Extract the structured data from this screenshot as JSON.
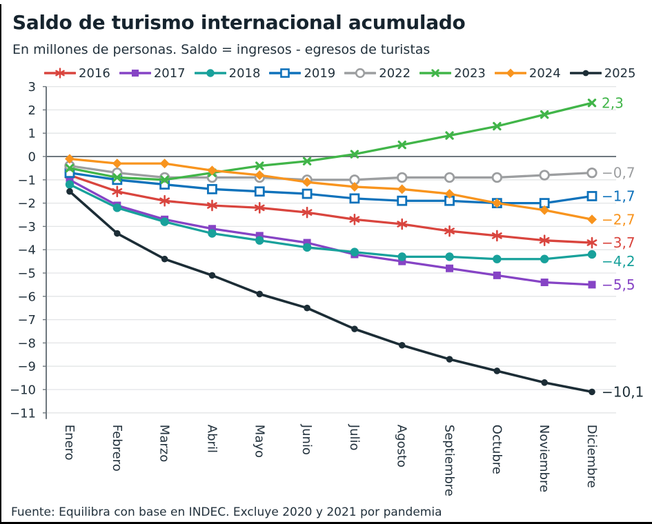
{
  "header": {
    "title": "Saldo de turismo internacional acumulado",
    "subtitle": "En millones de personas. Saldo = ingresos - egresos de turistas"
  },
  "footer": {
    "source": "Fuente: Equilibra con base en INDEC. Excluye 2020 y 2021 por pandemia"
  },
  "colors": {
    "background": "#ffffff",
    "text": "#22313c",
    "axis": "#6e777e",
    "zero_line": "#6e777e",
    "gridline": "#e2e4e6",
    "frame_border": "#000000"
  },
  "chart_data": {
    "type": "line",
    "title": "Saldo de turismo internacional acumulado",
    "subtitle": "En millones de personas. Saldo = ingresos - egresos de turistas",
    "xlabel": "",
    "ylabel": "",
    "grid": true,
    "legend_position": "top",
    "categories": [
      "Enero",
      "Febrero",
      "Marzo",
      "Abril",
      "Mayo",
      "Junio",
      "Julio",
      "Agosto",
      "Septiembre",
      "Octubre",
      "Noviembre",
      "Diciembre"
    ],
    "y_axis": {
      "min": -11,
      "max": 3,
      "step": 1,
      "tick_labels": [
        "3",
        "2",
        "1",
        "0",
        "−1",
        "−2",
        "−3",
        "−4",
        "−5",
        "−6",
        "−7",
        "−8",
        "−9",
        "−10",
        "−11"
      ]
    },
    "series": [
      {
        "name": "2016",
        "color": "#d9453e",
        "marker": "asterisk",
        "end_label": "−3,7",
        "values": [
          -0.8,
          -1.5,
          -1.9,
          -2.1,
          -2.2,
          -2.4,
          -2.7,
          -2.9,
          -3.2,
          -3.4,
          -3.6,
          -3.7
        ]
      },
      {
        "name": "2017",
        "color": "#8644c5",
        "marker": "square",
        "end_label": "−5,5",
        "values": [
          -1.0,
          -2.1,
          -2.7,
          -3.1,
          -3.4,
          -3.7,
          -4.2,
          -4.5,
          -4.8,
          -5.1,
          -5.4,
          -5.5
        ]
      },
      {
        "name": "2018",
        "color": "#18a19b",
        "marker": "circle",
        "end_label": "−4,2",
        "values": [
          -1.2,
          -2.2,
          -2.8,
          -3.3,
          -3.6,
          -3.9,
          -4.1,
          -4.3,
          -4.3,
          -4.4,
          -4.4,
          -4.2
        ]
      },
      {
        "name": "2019",
        "color": "#0f72bb",
        "marker": "open-square",
        "end_label": "−1,7",
        "values": [
          -0.7,
          -1.0,
          -1.2,
          -1.4,
          -1.5,
          -1.6,
          -1.8,
          -1.9,
          -1.9,
          -2.0,
          -2.0,
          -1.7
        ]
      },
      {
        "name": "2022",
        "color": "#9c9ea0",
        "marker": "open-circle",
        "end_label": "−0,7",
        "values": [
          -0.4,
          -0.7,
          -0.9,
          -0.9,
          -0.9,
          -1.0,
          -1.0,
          -0.9,
          -0.9,
          -0.9,
          -0.8,
          -0.7
        ]
      },
      {
        "name": "2023",
        "color": "#41b549",
        "marker": "x",
        "end_label": "2,3",
        "values": [
          -0.5,
          -0.9,
          -1.0,
          -0.7,
          -0.4,
          -0.2,
          0.1,
          0.5,
          0.9,
          1.3,
          1.8,
          2.3
        ]
      },
      {
        "name": "2024",
        "color": "#f8941e",
        "marker": "diamond",
        "end_label": "−2,7",
        "values": [
          -0.1,
          -0.3,
          -0.3,
          -0.6,
          -0.8,
          -1.1,
          -1.3,
          -1.4,
          -1.6,
          -2.0,
          -2.3,
          -2.7
        ]
      },
      {
        "name": "2025",
        "color": "#1c2d36",
        "marker": "dot",
        "end_label": "−10,1",
        "values": [
          -1.5,
          -3.3,
          -4.4,
          -5.1,
          -5.9,
          -6.5,
          -7.4,
          -8.1,
          -8.7,
          -9.2,
          -9.7,
          -10.1
        ]
      }
    ]
  }
}
